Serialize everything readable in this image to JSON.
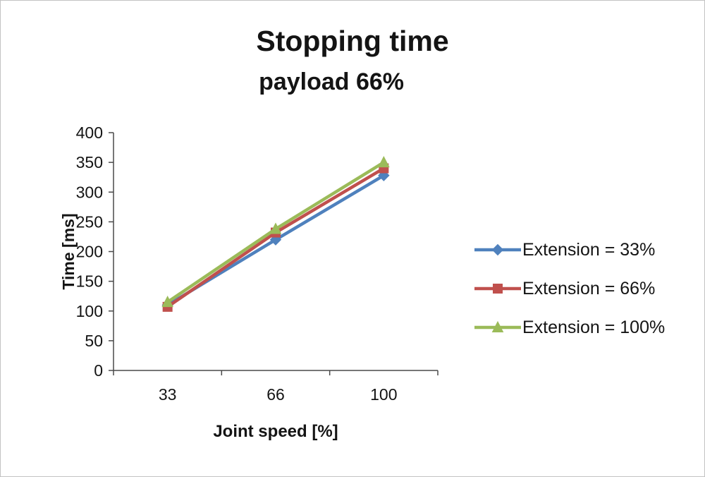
{
  "chart_data": {
    "type": "line",
    "title": "Stopping time",
    "subtitle": "payload 66%",
    "xlabel": "Joint speed [%]",
    "ylabel": "Time [ms]",
    "categories": [
      "33",
      "66",
      "100"
    ],
    "ylim": [
      0,
      400
    ],
    "ytick_step": 50,
    "grid": false,
    "legend_position": "right",
    "axis_color": "#4a4a4a",
    "series": [
      {
        "name": "Extension = 33%",
        "color": "#4f81bd",
        "marker": "diamond",
        "values": [
          110,
          220,
          328
        ]
      },
      {
        "name": "Extension = 66%",
        "color": "#c0504d",
        "marker": "square",
        "values": [
          107,
          232,
          340
        ]
      },
      {
        "name": "Extension = 100%",
        "color": "#9bbb59",
        "marker": "triangle",
        "values": [
          115,
          238,
          350
        ]
      }
    ]
  }
}
